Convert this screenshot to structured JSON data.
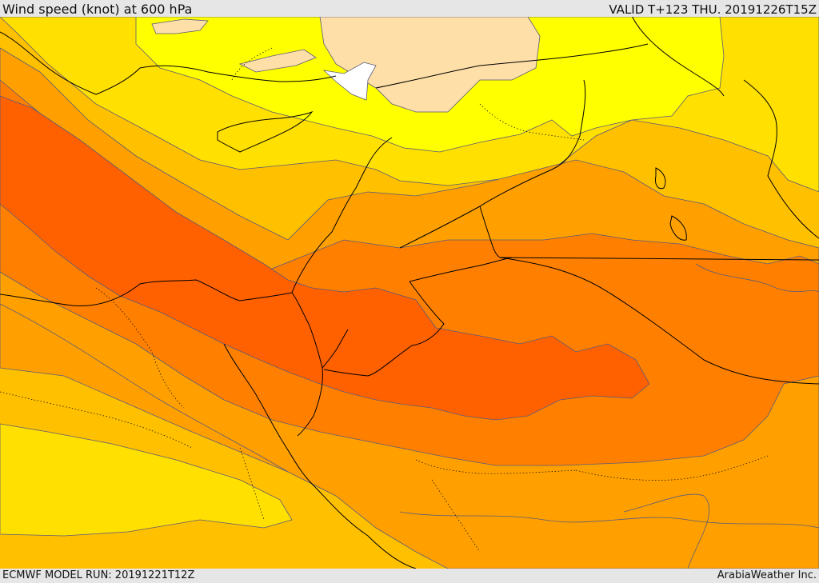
{
  "header": {
    "title": "Wind speed (knot) at 600 hPa",
    "valid": "VALID T+123 THU. 20191226T15Z"
  },
  "footer": {
    "model_run": "ECMWF MODEL RUN: 20191221T12Z",
    "credit": "ArabiaWeather Inc."
  },
  "map": {
    "variable": "wind speed",
    "level_hpa": 600,
    "units": "knot",
    "legend_shown": false,
    "palette": {
      "white": "#ffffff",
      "tan": "#ffdfa8",
      "yellow": "#ffff00",
      "gold": "#ffe000",
      "amber": "#ffc000",
      "orange": "#ffa000",
      "dark_orange": "#ff8000",
      "red_orange": "#ff6000"
    },
    "line_colors": {
      "coastline_border": "#000000",
      "contour": "#5a5a7a"
    }
  }
}
